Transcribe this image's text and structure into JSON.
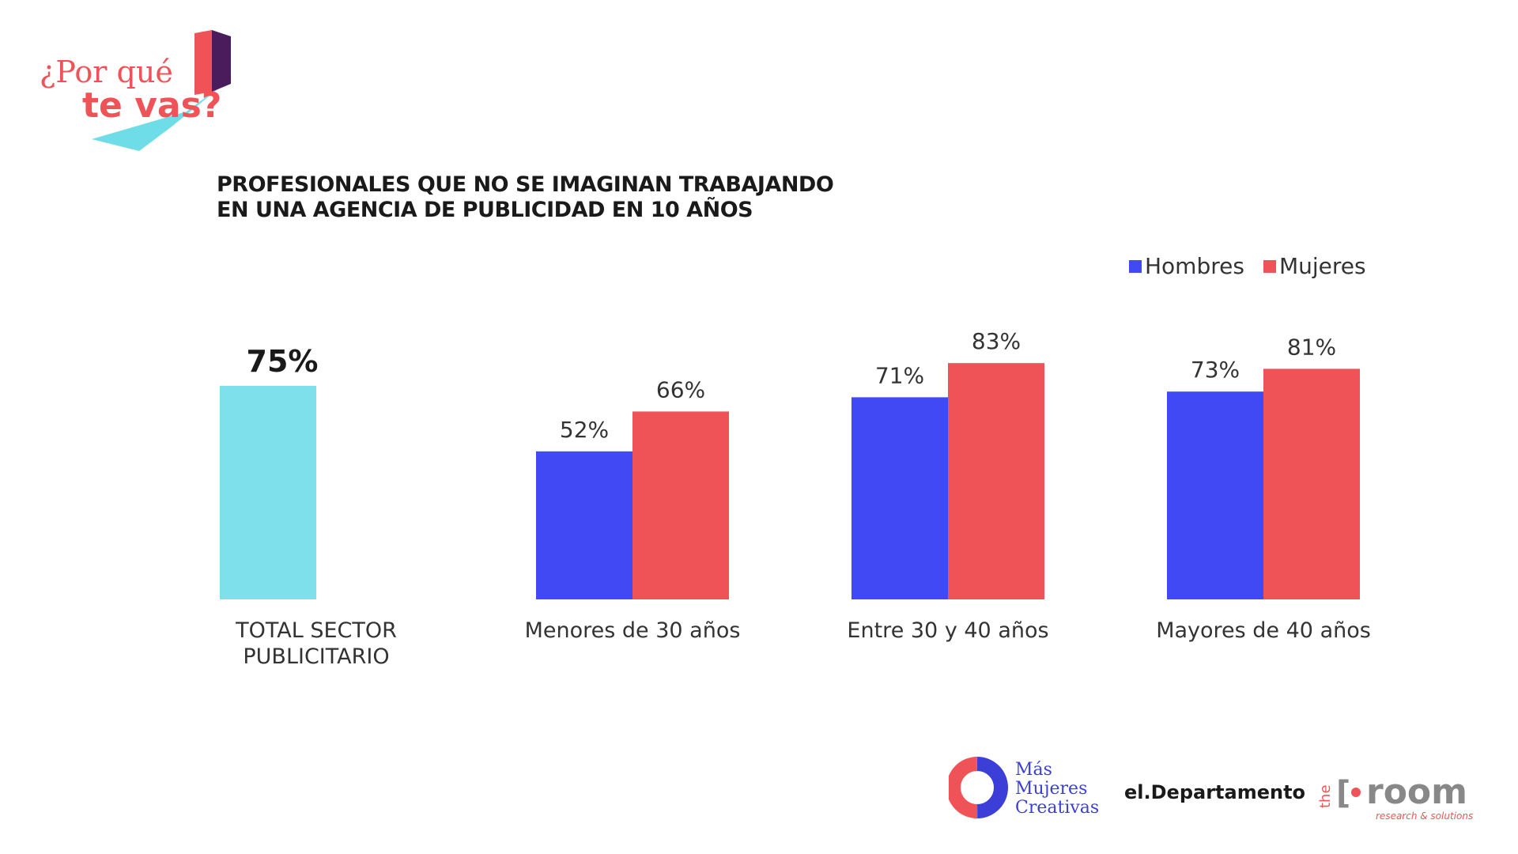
{
  "brand": {
    "line1": "¿Por qué",
    "line2": "te vas?"
  },
  "chart_data": {
    "type": "bar",
    "title_lines": [
      "PROFESIONALES QUE NO SE IMAGINAN TRABAJANDO",
      "EN UNA AGENCIA DE PUBLICIDAD EN 10 AÑOS"
    ],
    "legend_position": "top-right",
    "grid": false,
    "ylim": [
      0,
      100
    ],
    "total": {
      "category_lines": [
        "TOTAL SECTOR",
        "PUBLICITARIO"
      ],
      "value": 75,
      "label": "75%",
      "color": "#7ee0ea"
    },
    "categories": [
      "Menores de 30 años",
      "Entre 30 y 40 años",
      "Mayores de 40 años"
    ],
    "series": [
      {
        "name": "Hombres",
        "color": "#4149f5",
        "values": [
          52,
          71,
          73
        ],
        "labels": [
          "52%",
          "71%",
          "73%"
        ]
      },
      {
        "name": "Mujeres",
        "color": "#ef5358",
        "values": [
          66,
          83,
          81
        ],
        "labels": [
          "66%",
          "83%",
          "81%"
        ]
      }
    ]
  },
  "sponsors": {
    "mmc_line1": "Más",
    "mmc_line2": "Mujeres",
    "mmc_line3": "Creativas",
    "departamento": "el.Departamento",
    "room_prefix": "the",
    "room_name": "room",
    "room_tagline": "research & solutions"
  },
  "colors": {
    "brand_red": "#ef5358",
    "brand_cyan": "#6fdde8",
    "brand_purple": "#4a1c5c",
    "mmc_blue": "#3b3fd8"
  }
}
